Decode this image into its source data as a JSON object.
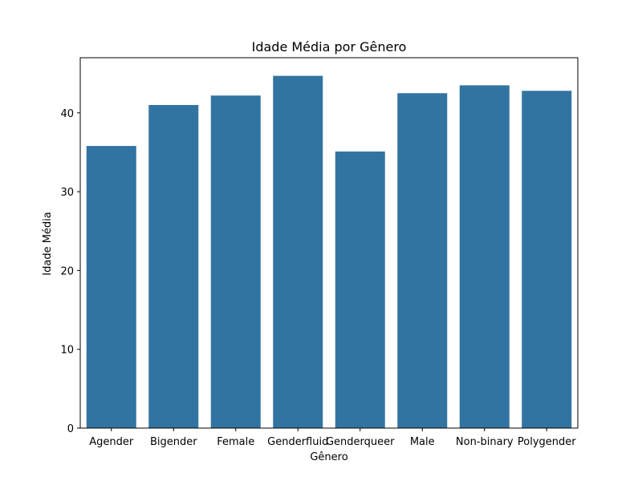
{
  "chart_data": {
    "type": "bar",
    "title": "Idade Média por Gênero",
    "xlabel": "Gênero",
    "ylabel": "Idade Média",
    "categories": [
      "Agender",
      "Bigender",
      "Female",
      "Genderfluid",
      "Genderqueer",
      "Male",
      "Non-binary",
      "Polygender"
    ],
    "values": [
      35.8,
      41.0,
      42.2,
      44.7,
      35.1,
      42.5,
      43.5,
      42.8
    ],
    "ylim": [
      0,
      47.0
    ],
    "yticks": [
      0,
      10,
      20,
      30,
      40
    ],
    "grid": false,
    "legend": "none",
    "bar_color": "#3274a1"
  }
}
